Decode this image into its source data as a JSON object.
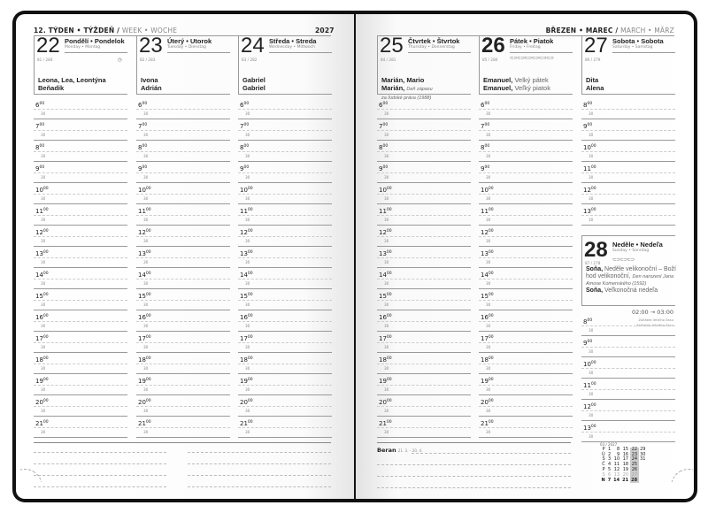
{
  "left_header": {
    "week": "12. TÝDEN • TÝŽDEŇ /",
    "week_sub": "WEEK • WOCHE",
    "year": "2027"
  },
  "right_header": {
    "month": "BŘEZEN • MAREC /",
    "month_sub": "MARCH • MÄRZ"
  },
  "days": [
    {
      "num": "22",
      "name": "Pondělí • Pondelok",
      "sub": "Monday • Montag",
      "doy": "81 / 284",
      "icons": "◷",
      "names": [
        {
          "b": "Leona, Lea, Leontýna"
        },
        {
          "b": "Beňadik"
        }
      ],
      "hours": [
        "6",
        "7",
        "8",
        "9",
        "10",
        "11",
        "12",
        "13",
        "14",
        "15",
        "16",
        "17",
        "18",
        "19",
        "20",
        "21"
      ]
    },
    {
      "num": "23",
      "name": "Úterý • Utorok",
      "sub": "Tuesday • Dienstag",
      "doy": "82 / 283",
      "names": [
        {
          "b": "Ivona"
        },
        {
          "b": "Adrián"
        }
      ],
      "hours": [
        "6",
        "7",
        "8",
        "9",
        "10",
        "11",
        "12",
        "13",
        "14",
        "15",
        "16",
        "17",
        "18",
        "19",
        "20",
        "21"
      ]
    },
    {
      "num": "24",
      "name": "Středa • Streda",
      "sub": "Wednesday • Mittwoch",
      "doy": "83 / 282",
      "names": [
        {
          "b": "Gabriel"
        },
        {
          "b": "Gabriel"
        }
      ],
      "hours": [
        "6",
        "7",
        "8",
        "9",
        "10",
        "11",
        "12",
        "13",
        "14",
        "15",
        "16",
        "17",
        "18",
        "19",
        "20",
        "21"
      ]
    },
    {
      "num": "25",
      "name": "Čtvrtek • Štvrtok",
      "sub": "Thursday • Donnerstag",
      "doy": "84 / 281",
      "names": [
        {
          "b": "Marián, Mario"
        },
        {
          "b": "Marián,",
          "i": "Deň zápasu"
        },
        {
          "i": "za ľudské práva (1988)"
        }
      ],
      "hours": [
        "6",
        "7",
        "8",
        "9",
        "10",
        "11",
        "12",
        "13",
        "14",
        "15",
        "16",
        "17",
        "18",
        "19",
        "20",
        "21"
      ]
    },
    {
      "num": "26",
      "name": "Pátek • Piatok",
      "sub": "Friday • Freitag",
      "doy": "85 / 280",
      "icons": "⊂⊃⊂⊃⊂⊃⊂⊃⊂⊃⊂⊃",
      "bold": true,
      "names": [
        {
          "b": "Emanuel,",
          "n": "Velký pátek"
        },
        {
          "b": "Emanuel,",
          "n": "Veľký piatok"
        }
      ],
      "hours": [
        "6",
        "7",
        "8",
        "9",
        "10",
        "11",
        "12",
        "13",
        "14",
        "15",
        "16",
        "17",
        "18",
        "19",
        "20",
        "21"
      ]
    },
    {
      "num": "27",
      "name": "Sobota • Sobota",
      "sub": "Saturday • Samstag",
      "doy": "86 / 279",
      "names": [
        {
          "b": "Dita"
        },
        {
          "b": "Alena"
        }
      ],
      "hours": [
        "8",
        "9",
        "10",
        "11",
        "12",
        "13"
      ]
    }
  ],
  "half_label": "30",
  "minutes": "00",
  "sunday": {
    "num": "28",
    "name": "Neděle • Nedeľa",
    "sub": "Sunday • Sonntag",
    "doy": "87 / 278",
    "icons": "⊂⊃⊂⊃⊂⊃",
    "line1_b": "Soňa,",
    "line1_n": "Neděle velikonoční – Boží hod velikonoční,",
    "line1_i": "Den narození Jana Amose Komenského (1592)",
    "line2_b": "Soňa,",
    "line2_n": "Veľkonočná nedeľa",
    "dst_time": "02:00 → 03:00",
    "dst_cz": "Začátek letního času",
    "dst_sk": "Začiatok letného času",
    "hours": [
      "8",
      "9",
      "10",
      "11",
      "12",
      "13"
    ]
  },
  "zodiac": {
    "name": "Beran",
    "range": "21. 3. – 20. 4."
  },
  "mini_calendar": {
    "title": "03 / 2027",
    "rows": [
      [
        "P",
        "1",
        "8",
        "15",
        "22",
        "29"
      ],
      [
        "Ú",
        "2",
        "9",
        "16",
        "23",
        "30"
      ],
      [
        "S",
        "3",
        "10",
        "17",
        "24",
        "31"
      ],
      [
        "Č",
        "4",
        "11",
        "18",
        "25"
      ],
      [
        "P",
        "5",
        "12",
        "19",
        "26"
      ],
      [
        "S",
        "6",
        "13",
        "20",
        "27"
      ],
      [
        "N",
        "7",
        "14",
        "21",
        "28"
      ]
    ]
  }
}
